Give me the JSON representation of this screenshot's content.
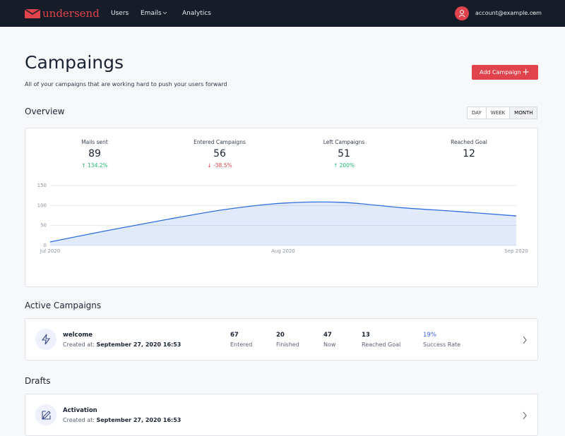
{
  "nav": {
    "brand": "undersend",
    "links": [
      "Users",
      "Emails",
      "Analytics"
    ],
    "account": "account@example.com"
  },
  "header": {
    "title": "Campaings",
    "subtitle": "All of your campaigns that are working hard to push your users forward",
    "button": "Add Campaign"
  },
  "overview": {
    "title": "Overview",
    "ranges": [
      "DAY",
      "WEEK",
      "MONTH"
    ],
    "stats": [
      {
        "label": "Mails sent",
        "value": 89,
        "change": "134.2%"
      },
      {
        "label": "Entered Campaigns",
        "value": 56,
        "change": "-38.5%"
      },
      {
        "label": "Left Campaigns",
        "value": 51,
        "change": "200%"
      },
      {
        "label": "Reached Goal",
        "value": 12
      }
    ]
  },
  "chart_data": {
    "type": "line",
    "categories": [
      "Jul 2020",
      null,
      null,
      null,
      "Aug 2020",
      null,
      null,
      null,
      "Sep 2020"
    ],
    "series": [
      {
        "color": "#2f6fdc",
        "values": [
          9,
          38,
          65,
          90,
          106,
          108,
          95,
          85,
          74
        ]
      }
    ],
    "ylim": [
      0,
      150
    ],
    "yticks": [
      0,
      50,
      100,
      150
    ],
    "grid": true
  },
  "active": {
    "title": "Active Campaigns",
    "campaigns": [
      {
        "name": "welcome",
        "created_label": "Created at:",
        "created": "September 27, 2020 16:53",
        "stats": [
          {
            "value": "67",
            "label": "Entered"
          },
          {
            "value": "20",
            "label": "Finished"
          },
          {
            "value": "47",
            "label": "Now"
          },
          {
            "value": "13",
            "label": "Reached Goal"
          },
          {
            "value": "19%",
            "label": "Success Rate"
          }
        ]
      }
    ]
  },
  "drafts": {
    "title": "Drafts",
    "campaigns": [
      {
        "name": "Activation",
        "created_label": "Created at:",
        "created": "September 27, 2020 16:53"
      }
    ]
  }
}
